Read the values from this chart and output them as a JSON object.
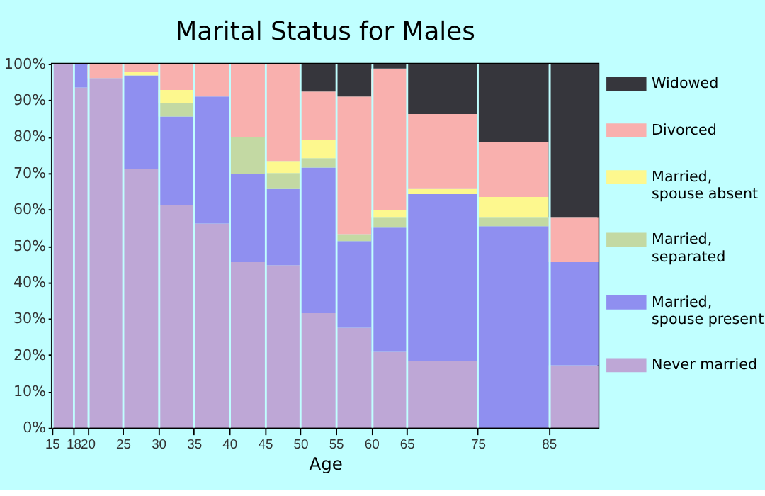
{
  "chart_data": {
    "type": "bar",
    "stacked": true,
    "title": "Marital Status for Males",
    "xlabel": "Age",
    "x": [
      16.5,
      19,
      22.5,
      27.5,
      32.5,
      37.5,
      42.5,
      47.5,
      52.5,
      57.5,
      62.5,
      70,
      80,
      88.5
    ],
    "xlim": [
      15,
      92
    ],
    "xticks": [
      15,
      18,
      20,
      25,
      30,
      35,
      40,
      45,
      50,
      55,
      60,
      65,
      75,
      85
    ],
    "ylim": [
      0,
      100
    ],
    "yticks": [
      {
        "value": 0,
        "label": "0%"
      },
      {
        "value": 10,
        "label": "10%"
      },
      {
        "value": 20,
        "label": "20%"
      },
      {
        "value": 30,
        "label": "30%"
      },
      {
        "value": 40,
        "label": "40%"
      },
      {
        "value": 50,
        "label": "50%"
      },
      {
        "value": 60,
        "label": "60%"
      },
      {
        "value": 70,
        "label": "70%"
      },
      {
        "value": 80,
        "label": "80%"
      },
      {
        "value": 90,
        "label": "90%"
      },
      {
        "value": 100,
        "label": "100%"
      }
    ],
    "grid": "x",
    "legend": "right",
    "series": [
      {
        "name": "Never married",
        "color": "#bea7d6",
        "values": [
          100,
          93.5,
          96.1,
          71.1,
          61.2,
          56.1,
          45.5,
          44.7,
          31.5,
          27.5,
          20.9,
          18.3,
          0,
          17.2
        ]
      },
      {
        "name": "Married, spouse present",
        "color": "#8f8ff0",
        "values": [
          0,
          6.5,
          0,
          25.7,
          24.3,
          34.9,
          24.2,
          20.9,
          40.0,
          23.8,
          34.1,
          45.9,
          55.4,
          28.3
        ]
      },
      {
        "name": "Married, separated",
        "color": "#c3d9a3",
        "values": [
          0,
          0,
          0,
          0,
          3.6,
          0,
          10.2,
          4.4,
          2.6,
          1.9,
          2.9,
          0,
          2.5,
          0
        ]
      },
      {
        "name": "Married, spouse absent",
        "color": "#fdf88e",
        "values": [
          0,
          0,
          0,
          1.0,
          3.7,
          0,
          0,
          3.3,
          5.1,
          0,
          1.9,
          1.4,
          5.5,
          0
        ]
      },
      {
        "name": "Divorced",
        "color": "#f9b0ae",
        "values": [
          0,
          0,
          3.9,
          2.2,
          7.2,
          9.0,
          20.1,
          26.7,
          13.2,
          37.8,
          38.9,
          20.6,
          15.1,
          12.4
        ]
      },
      {
        "name": "Widowed",
        "color": "#36363c",
        "values": [
          0,
          0,
          0,
          0,
          0,
          0,
          0,
          0,
          7.6,
          9.0,
          1.3,
          13.8,
          21.5,
          42.1
        ]
      }
    ]
  }
}
